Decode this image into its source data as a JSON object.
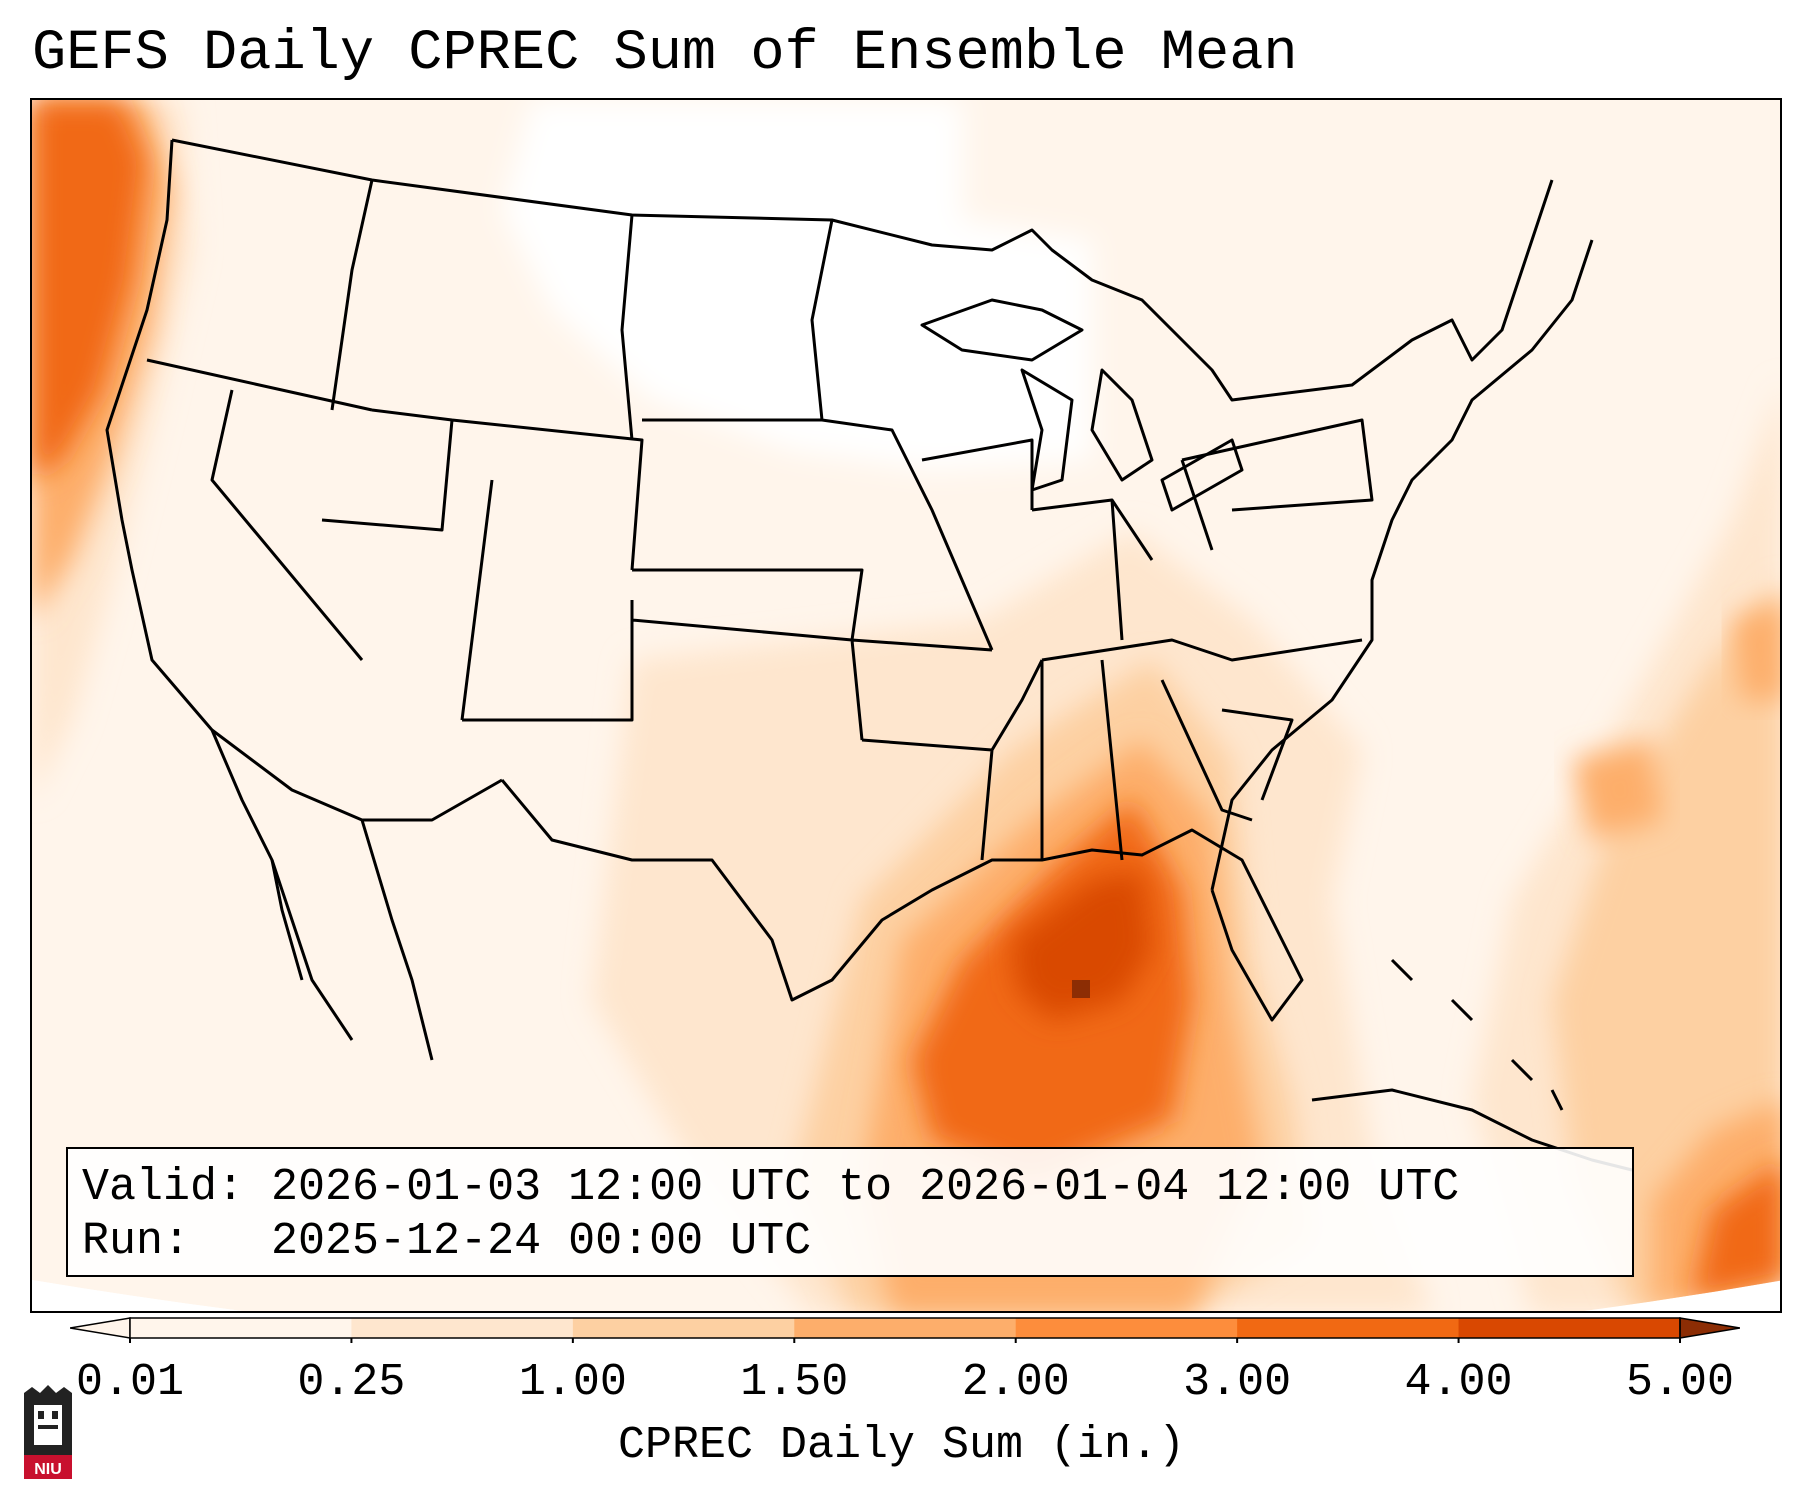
{
  "title": "GEFS Daily CPREC Sum of Ensemble Mean",
  "info": {
    "valid_label": "Valid:",
    "valid_value": "2026-01-03 12:00 UTC to 2026-01-04 12:00 UTC",
    "run_label": "Run:",
    "run_value": "2025-12-24 00:00 UTC"
  },
  "colorbar": {
    "label": "CPREC Daily Sum (in.)",
    "ticks": [
      "0.01",
      "0.25",
      "1.00",
      "1.50",
      "2.00",
      "3.00",
      "4.00",
      "5.00"
    ],
    "colors": [
      "#fff5eb",
      "#fee6ce",
      "#fdd0a2",
      "#fdae6b",
      "#fd8d3c",
      "#f16913",
      "#d94801",
      "#8c2d04"
    ],
    "extend": "both"
  },
  "logo": {
    "text": "NIU",
    "icon": "niu-castle-logo-icon"
  },
  "map": {
    "region": "Continental United States",
    "field": "CPREC daily sum ensemble mean",
    "max_region": "Mississippi / Louisiana / Gulf of Mexico",
    "colors": {
      "trace": "#fff5eb",
      "light": "#fee6ce",
      "moderate": "#fdd0a2",
      "heavy": "#fdae6b",
      "very_heavy": "#f16913",
      "max": "#d94801",
      "extreme": "#8c2d04"
    }
  }
}
